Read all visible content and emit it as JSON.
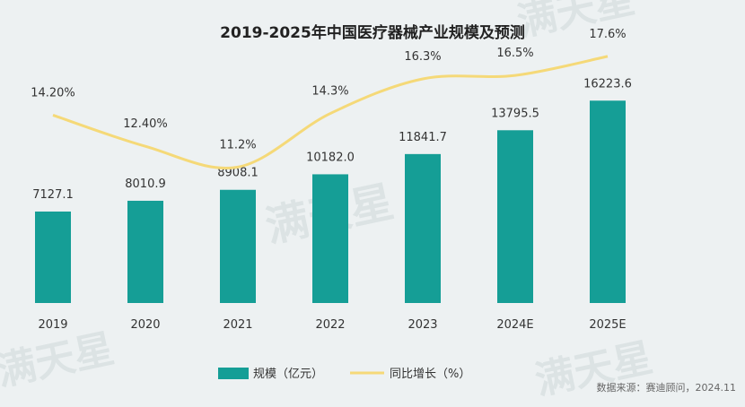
{
  "chart_data": {
    "type": "bar+line",
    "title": "2019-2025年中国医疗器械产业规模及预测",
    "categories": [
      "2019",
      "2020",
      "2021",
      "2022",
      "2023",
      "2024E",
      "2025E"
    ],
    "series": [
      {
        "name": "规模（亿元）",
        "type": "bar",
        "values": [
          7127.1,
          8010.9,
          8908.1,
          10182.0,
          11841.7,
          13795.5,
          16223.6
        ],
        "labels": [
          "7127.1",
          "8010.9",
          "8908.1",
          "10182.0",
          "11841.7",
          "13795.5",
          "16223.6"
        ],
        "color": "#159e96"
      },
      {
        "name": "同比增长（%）",
        "type": "line",
        "values": [
          14.2,
          12.4,
          11.2,
          14.3,
          16.3,
          16.5,
          17.6
        ],
        "labels": [
          "14.20%",
          "12.40%",
          "11.2%",
          "14.3%",
          "16.3%",
          "16.5%",
          "17.6%"
        ],
        "color": "#f5d978"
      }
    ],
    "legend_position": "bottom",
    "grid": false
  },
  "watermark": {
    "brand": "满天星",
    "lines": [
      "满天星",
      "满天星",
      "满天星",
      "满天星"
    ]
  },
  "source": "数据来源：赛迪顾问，2024.11"
}
